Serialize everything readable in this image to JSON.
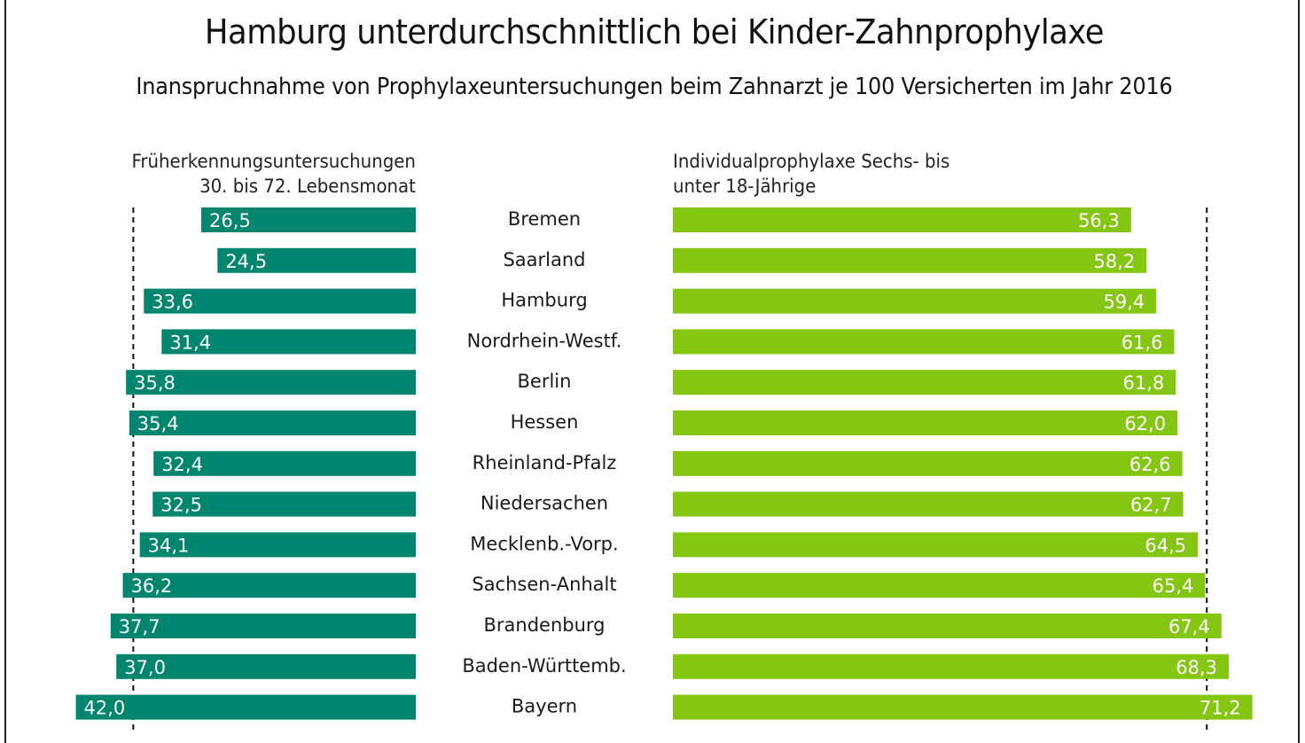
{
  "chart_data": {
    "type": "bar",
    "orientation": "horizontal-butterfly",
    "title": "Hamburg unterdurchschnittlich bei Kinder-Zahnprophylaxe",
    "subtitle": "Inanspruchnahme von Prophylaxeuntersuchungen beim Zahnarzt je 100 Versicherten im Jahr 2016",
    "categories": [
      "Bremen",
      "Saarland",
      "Hamburg",
      "Nordrhein-Westf.",
      "Berlin",
      "Hessen",
      "Rheinland-Pfalz",
      "Niedersachen",
      "Mecklenb.-Vorp.",
      "Sachsen-Anhalt",
      "Brandenburg",
      "Baden-Württemb.",
      "Bayern"
    ],
    "series": [
      {
        "name": "Früherkennungsuntersuchungen 30. bis 72. Lebensmonat",
        "header_lines": [
          "Früherkennungsuntersuchungen",
          "30. bis 72. Lebensmonat"
        ],
        "side": "left",
        "color": "#00866f",
        "values": [
          26.5,
          24.5,
          33.6,
          31.4,
          35.8,
          35.4,
          32.4,
          32.5,
          34.1,
          36.2,
          37.7,
          37.0,
          42.0
        ],
        "value_labels": [
          "26,5",
          "24,5",
          "33,6",
          "31,4",
          "35,8",
          "35,4",
          "32,4",
          "32,5",
          "34,1",
          "36,2",
          "37,7",
          "37,0",
          "42,0"
        ],
        "reference_line": 34.9
      },
      {
        "name": "Individualprophylaxe Sechs- bis unter 18-Jährige",
        "header_lines": [
          "Individualprophylaxe Sechs- bis",
          "unter 18-Jährige"
        ],
        "side": "right",
        "color": "#84c612",
        "values": [
          56.3,
          58.2,
          59.4,
          61.6,
          61.8,
          62.0,
          62.6,
          62.7,
          64.5,
          65.4,
          67.4,
          68.3,
          71.2
        ],
        "value_labels": [
          "56,3",
          "58,2",
          "59,4",
          "61,6",
          "61,8",
          "62,0",
          "62,6",
          "62,7",
          "64,5",
          "65,4",
          "67,4",
          "68,3",
          "71,2"
        ],
        "reference_line": 65.6
      }
    ],
    "reference_line_style": "dashed",
    "value_label_color": "#ffffff",
    "grid": false,
    "legend": "none",
    "xlabel": "",
    "ylabel": ""
  }
}
